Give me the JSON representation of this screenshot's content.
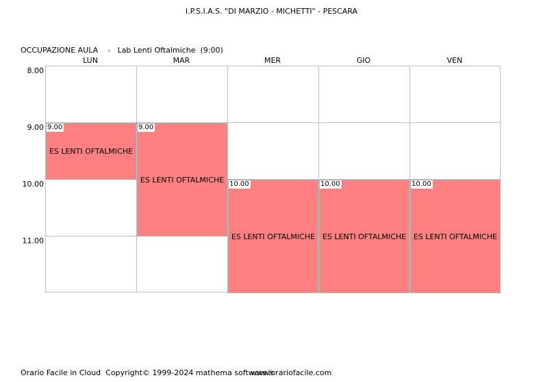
{
  "header": {
    "school": "I.P.S.I.A.S. \"DI MARZIO - MICHETTI\" - PESCARA",
    "subtitle": "OCCUPAZIONE AULA    -   Lab Lenti Oftalmiche  (9:00)"
  },
  "days": [
    "LUN",
    "MAR",
    "MER",
    "GIO",
    "VEN"
  ],
  "hours": [
    "8.00",
    "9.00",
    "10.00",
    "11.00"
  ],
  "lessons": [
    {
      "day": "LUN",
      "start": "9.00",
      "label": "ES LENTI OFTALMICHE",
      "hours": 1
    },
    {
      "day": "MAR",
      "start": "9.00",
      "label": "ES LENTI OFTALMICHE",
      "hours": 2
    },
    {
      "day": "MER",
      "start": "10.00",
      "label": "ES LENTI OFTALMICHE",
      "hours": 2
    },
    {
      "day": "GIO",
      "start": "10.00",
      "label": "ES LENTI OFTALMICHE",
      "hours": 2
    },
    {
      "day": "VEN",
      "start": "10.00",
      "label": "ES LENTI OFTALMICHE",
      "hours": 2
    }
  ],
  "colors": {
    "lesson": "#ff8080",
    "grid": "#bdbdbd"
  },
  "footer": {
    "copyright": "Orario Facile in Cloud  Copyright© 1999-2024 mathema software®",
    "url": "www.orariofacile.com"
  }
}
